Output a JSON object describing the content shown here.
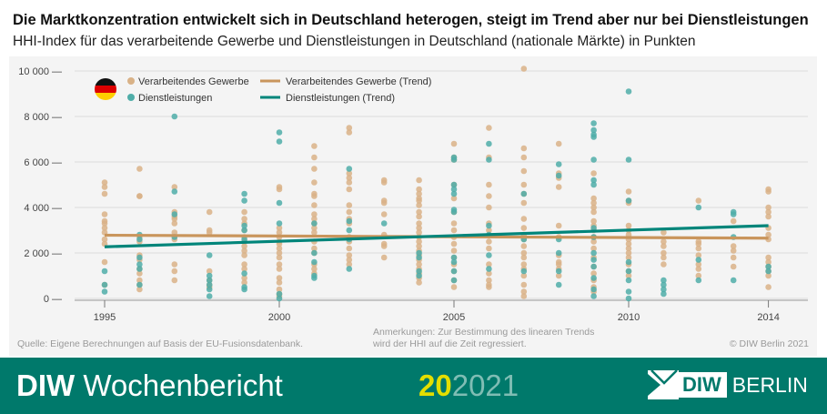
{
  "header": {
    "title": "Die Marktkonzentration entwickelt sich in Deutschland heterogen, steigt im Trend aber nur bei Dienstleistungen",
    "subtitle": "HHI-Index für das verarbeitende Gewerbe und Dienstleistungen in Deutschland (nationale Märkte) in Punkten"
  },
  "notes": {
    "source": "Quelle: Eigene Berechnungen auf Basis der EU-Fusionsdatenbank.",
    "remarks_1": "Anmerkungen: Zur Bestimmung des linearen Trends",
    "remarks_2": "wird der HHI auf die Zeit regressiert.",
    "copyright": "© DIW Berlin 2021"
  },
  "footer": {
    "brand_bold": "DIW",
    "brand": "Wochenbericht",
    "issue": "20",
    "year": "2021",
    "logo_box": "DIW",
    "logo_text": "BERLIN"
  },
  "chart_data": {
    "type": "scatter",
    "ylim": [
      0,
      10000
    ],
    "xlim": [
      1995,
      2014
    ],
    "yticks": [
      0,
      2000,
      4000,
      6000,
      8000,
      10000
    ],
    "ytick_labels": [
      "0",
      "2 000",
      "4 000",
      "6 000",
      "8 000",
      "10 000"
    ],
    "xticks": [
      1995,
      2000,
      2005,
      2010,
      2014
    ],
    "xtick_labels": [
      "1995",
      "2000",
      "2005",
      "2010",
      "2014"
    ],
    "grid": true,
    "legend_placement": "top-left",
    "flag": "Germany",
    "colors": {
      "manufacturing": "#d9b287",
      "services": "#4fada8",
      "manufacturing_trend": "#c9955c",
      "services_trend": "#00857a"
    },
    "legend": [
      "Verarbeitendes Gewerbe",
      "Dienstleistungen",
      "Verarbeitendes Gewerbe (Trend)",
      "Dienstleistungen (Trend)"
    ],
    "series": [
      {
        "name": "Verarbeitendes Gewerbe",
        "points": {
          "1995": [
            5100,
            4900,
            4600,
            3700,
            3400,
            3300,
            3100,
            2900,
            2600,
            2400,
            1600,
            600
          ],
          "1996": [
            5700,
            4500,
            4500,
            2700,
            2500,
            1900,
            1700,
            1300,
            1100,
            800,
            600,
            400
          ],
          "1997": [
            4900,
            3800,
            3600,
            3500,
            3300,
            2900,
            2600,
            1500,
            1200,
            800
          ],
          "1998": [
            3800,
            3000,
            2900,
            1200,
            800,
            600,
            500
          ],
          "1999": [
            3800,
            3500,
            3300,
            3000,
            2700,
            2500,
            2300,
            2100,
            1900,
            1500,
            1300,
            900,
            700
          ],
          "2000": [
            4900,
            4800,
            3100,
            2900,
            2700,
            2500,
            2400,
            2200,
            2000,
            1800,
            1500,
            1300,
            900,
            700,
            400,
            200,
            100
          ],
          "2001": [
            6700,
            6200,
            5700,
            5100,
            4600,
            4500,
            4100,
            3700,
            3500,
            3300,
            3100,
            2900,
            2500,
            2200,
            2000,
            1500,
            1300,
            1100
          ],
          "2002": [
            7500,
            7300,
            5500,
            5300,
            5100,
            4800,
            4100,
            3800,
            3500,
            3300,
            2700,
            2500,
            2200,
            1900,
            1700,
            1500
          ],
          "2003": [
            5200,
            5100,
            4300,
            4200,
            3700,
            2800,
            2400,
            2300,
            1800
          ],
          "2004": [
            5200,
            4800,
            4600,
            4400,
            4300,
            4100,
            3800,
            3600,
            3300,
            3100,
            2900,
            2700,
            2500,
            2300,
            2100,
            1900,
            1700,
            1500,
            1300,
            1100,
            900,
            700
          ],
          "2005": [
            6800,
            6200,
            6100,
            5000,
            4400,
            3800,
            3300,
            3000,
            2700,
            2400,
            2100,
            1800,
            1500,
            1200,
            800,
            500
          ],
          "2006": [
            7500,
            6200,
            5000,
            4500,
            4000,
            3300,
            3000,
            2500,
            2200,
            1500,
            1100,
            800,
            600,
            500
          ],
          "2007": [
            10100,
            6600,
            6200,
            5600,
            5000,
            4600,
            4200,
            3500,
            3100,
            2800,
            2600,
            2300,
            2000,
            1800,
            1500,
            1300,
            1000,
            600,
            300,
            100
          ],
          "2008": [
            6800,
            5500,
            5300,
            4900,
            3200,
            2700,
            1900,
            1600,
            1500,
            1300,
            1000
          ],
          "2009": [
            5500,
            4400,
            4200,
            4000,
            3800,
            3400,
            3200,
            3000,
            2700,
            2500,
            2200,
            1800,
            1400,
            1100,
            800,
            500,
            300
          ],
          "2010": [
            4700,
            4300,
            4200,
            3200,
            3000,
            2800,
            2600,
            2400,
            2200,
            2000,
            1800,
            1500,
            1200,
            1000
          ],
          "2011": [
            2900,
            2500,
            2300,
            2000,
            1800,
            1500
          ],
          "2012": [
            4300,
            2500,
            2400,
            2200,
            1900,
            1500,
            1300,
            1000
          ],
          "2013": [
            3400,
            2300,
            2100,
            1800,
            1400
          ],
          "2014": [
            4800,
            4700,
            4000,
            3800,
            3600,
            3100,
            2800,
            2600,
            1800,
            1600,
            1400,
            1200,
            1000,
            500
          ]
        }
      },
      {
        "name": "Dienstleistungen",
        "points": {
          "1995": [
            1200,
            600,
            300
          ],
          "1996": [
            2800,
            2600,
            1800,
            1500,
            1300,
            600
          ],
          "1997": [
            8000,
            4700,
            3700,
            2700
          ],
          "1998": [
            1900,
            1000,
            800,
            600,
            400,
            100
          ],
          "1999": [
            4600,
            4300,
            3200,
            3000,
            2600,
            1100,
            500,
            400
          ],
          "2000": [
            7300,
            6900,
            4200,
            3300,
            200,
            0
          ],
          "2001": [
            3300,
            2000,
            1600,
            1000,
            900
          ],
          "2002": [
            5700,
            3400,
            3000,
            2600,
            1300
          ],
          "2003": [
            3300
          ],
          "2004": [
            2000,
            1800,
            1200,
            1000
          ],
          "2005": [
            6200,
            6100,
            5000,
            4800,
            4600,
            3900,
            3800,
            1800,
            1600,
            1200,
            800
          ],
          "2006": [
            6800,
            6100,
            3200,
            2800,
            1900,
            1300
          ],
          "2007": [
            4600,
            2600,
            1200
          ],
          "2008": [
            5900,
            5400,
            2600,
            2000,
            1200,
            600
          ],
          "2009": [
            7700,
            7400,
            7200,
            7100,
            6100,
            5200,
            5000,
            3100,
            2700,
            2000,
            1700,
            1400,
            900,
            400,
            100
          ],
          "2010": [
            9100,
            6100,
            4300,
            1600,
            1200,
            800,
            300,
            0
          ],
          "2011": [
            800,
            600,
            400,
            200
          ],
          "2012": [
            4000,
            1700,
            800
          ],
          "2013": [
            3800,
            3700,
            2700,
            800
          ],
          "2014": [
            1400,
            1200
          ]
        }
      },
      {
        "name": "Verarbeitendes Gewerbe (Trend)",
        "type": "line",
        "x": [
          1995,
          2014
        ],
        "y": [
          2780,
          2650
        ]
      },
      {
        "name": "Dienstleistungen (Trend)",
        "type": "line",
        "x": [
          1995,
          2014
        ],
        "y": [
          2270,
          3200
        ]
      }
    ]
  }
}
